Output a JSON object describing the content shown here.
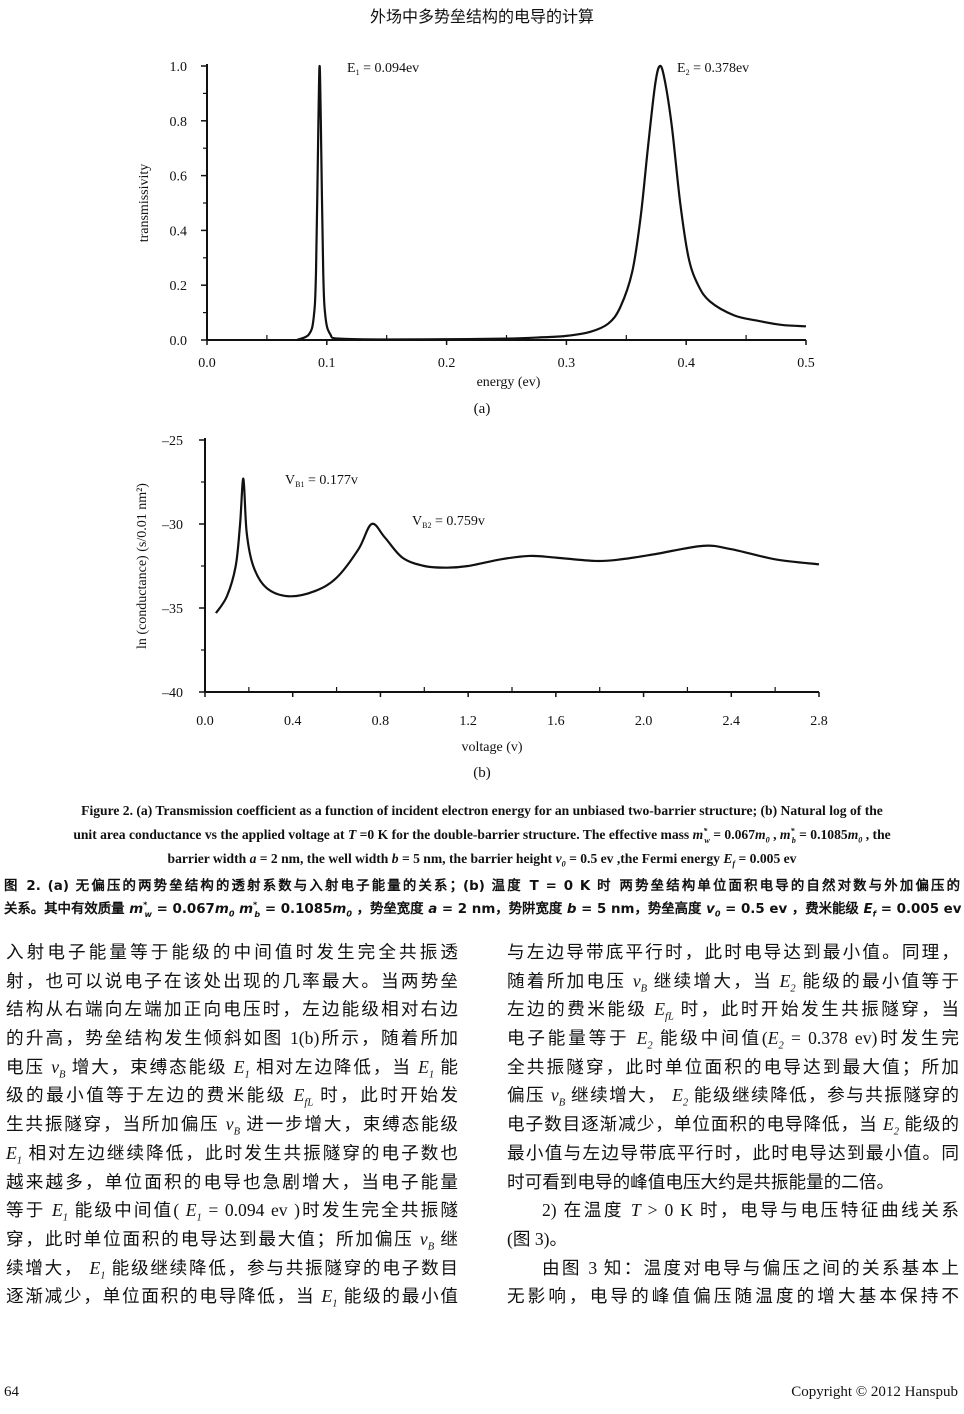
{
  "running_head": "外场中多势垒结构的电导的计算",
  "figure": {
    "panel_a_label": "(a)",
    "panel_b_label": "(b)"
  },
  "chart_data": [
    {
      "type": "line",
      "xlabel": "energy (ev)",
      "ylabel": "transmissivity",
      "xlim": [
        0,
        0.5
      ],
      "ylim": [
        0,
        1.0
      ],
      "x_ticks": [
        "0.0",
        "0.1",
        "0.2",
        "0.3",
        "0.4",
        "0.5"
      ],
      "y_ticks": [
        "0.0",
        "0.2",
        "0.4",
        "0.6",
        "0.8",
        "1.0"
      ],
      "grid": false,
      "annotations": [
        {
          "main": "E",
          "sub": "1",
          "rest": " = 0.094ev",
          "at": [
            0.094,
            1.0
          ]
        },
        {
          "main": "E",
          "sub": "2",
          "rest": " = 0.378ev",
          "at": [
            0.378,
            1.0
          ]
        }
      ],
      "x": [
        0.075,
        0.085,
        0.089,
        0.091,
        0.093,
        0.094,
        0.095,
        0.097,
        0.099,
        0.103,
        0.11,
        0.15,
        0.2,
        0.25,
        0.28,
        0.3,
        0.32,
        0.335,
        0.345,
        0.355,
        0.362,
        0.368,
        0.374,
        0.378,
        0.382,
        0.388,
        0.395,
        0.402,
        0.41,
        0.42,
        0.44,
        0.46,
        0.48,
        0.5
      ],
      "y": [
        0.0,
        0.02,
        0.08,
        0.25,
        0.8,
        1.0,
        0.8,
        0.25,
        0.08,
        0.02,
        0.005,
        0.002,
        0.003,
        0.005,
        0.01,
        0.015,
        0.03,
        0.06,
        0.12,
        0.25,
        0.45,
        0.7,
        0.93,
        1.0,
        0.95,
        0.78,
        0.5,
        0.3,
        0.2,
        0.14,
        0.09,
        0.07,
        0.055,
        0.05
      ]
    },
    {
      "type": "line",
      "xlabel": "voltage (v)",
      "ylabel": "ln (conductance) (s/0.01 nm²)",
      "xlim": [
        0,
        2.8
      ],
      "ylim": [
        -40,
        -25
      ],
      "x_ticks": [
        "0.0",
        "0.4",
        "0.8",
        "1.2",
        "1.6",
        "2.0",
        "2.4",
        "2.8"
      ],
      "y_ticks": [
        "–40",
        "–35",
        "–30",
        "–25"
      ],
      "grid": false,
      "annotations": [
        {
          "main": "V",
          "sub": "B1",
          "rest": " = 0.177v",
          "at": [
            0.177,
            -27.3
          ]
        },
        {
          "main": "V",
          "sub": "B2",
          "rest": " = 0.759v",
          "at": [
            0.759,
            -30.0
          ]
        }
      ],
      "x": [
        0.05,
        0.1,
        0.14,
        0.16,
        0.175,
        0.19,
        0.22,
        0.28,
        0.38,
        0.5,
        0.6,
        0.7,
        0.76,
        0.82,
        0.9,
        1.0,
        1.1,
        1.2,
        1.35,
        1.48,
        1.6,
        1.78,
        1.9,
        2.05,
        2.27,
        2.4,
        2.6,
        2.8
      ],
      "y": [
        -35.3,
        -34.3,
        -32.5,
        -30.0,
        -27.3,
        -30.5,
        -32.5,
        -33.8,
        -34.3,
        -34.0,
        -33.2,
        -31.5,
        -30.0,
        -30.8,
        -32.0,
        -32.5,
        -32.6,
        -32.5,
        -32.1,
        -31.9,
        -32.0,
        -32.2,
        -32.1,
        -31.8,
        -31.3,
        -31.5,
        -32.1,
        -32.4
      ]
    }
  ],
  "caption": {
    "en": [
      [
        {
          "t": "Figure 2. (a) Transmission coefficient as a function of incident electron energy for an unbiased two-barrier structure; (b) Natural log of the"
        }
      ],
      [
        {
          "t": "unit area conductance vs the applied voltage at "
        },
        {
          "m": "T"
        },
        {
          "t": " =0 K for the double-barrier structure. The effective mass "
        },
        {
          "m": "m",
          "sup": "*",
          "s": "w"
        },
        {
          "t": " = 0.067"
        },
        {
          "m": "m",
          "s": "0"
        },
        {
          "t": " , "
        },
        {
          "m": "m",
          "sup": "*",
          "s": "b"
        },
        {
          "t": " = 0.1085"
        },
        {
          "m": "m",
          "s": "0"
        },
        {
          "t": " , the"
        }
      ],
      [
        {
          "t": "barrier width "
        },
        {
          "m": "a"
        },
        {
          "t": " = 2 nm, the well width "
        },
        {
          "m": "b"
        },
        {
          "t": " = 5 nm, the barrier height  "
        },
        {
          "m": "v",
          "s": "0"
        },
        {
          "t": " = 0.5 ev ,the Fermi energy  "
        },
        {
          "m": "E",
          "s": "f"
        },
        {
          "t": " = 0.005 ev"
        }
      ]
    ],
    "zh": [
      [
        {
          "t": "图 2. (a)  无偏压的两势垒结构的透射系数与入射电子能量的关系；(b)  温度 T = 0 K 时  两势垒结构单位面积电导的自然对数与外加偏压的"
        }
      ],
      [
        {
          "t": "关系。其中有效质量 "
        },
        {
          "m": "m",
          "sup": "*",
          "s": "w"
        },
        {
          "t": " = 0.067"
        },
        {
          "m": "m",
          "s": "0"
        },
        {
          "t": "   "
        },
        {
          "m": "m",
          "sup": "*",
          "s": "b"
        },
        {
          "t": " = 0.1085"
        },
        {
          "m": "m",
          "s": "0"
        },
        {
          "t": " ，势垒宽度 "
        },
        {
          "m": "a"
        },
        {
          "t": " = 2 nm，势阱宽度 "
        },
        {
          "m": "b"
        },
        {
          "t": " = 5 nm，势垒高度 "
        },
        {
          "m": "v",
          "s": "0"
        },
        {
          "t": " = 0.5 ev ，费米能级 "
        },
        {
          "m": "E",
          "s": "f"
        },
        {
          "t": " = 0.005 ev"
        }
      ]
    ]
  },
  "body": {
    "left": [
      [
        {
          "t": "入射电子能量等于能级的中间值时发生完全共振透"
        }
      ],
      [
        {
          "t": "射，也可以说电子在该处出现的几率最大。当两势垒"
        }
      ],
      [
        {
          "t": "结构从右端向左端加正向电压时，左边能级相对右边"
        }
      ],
      [
        {
          "t": "的升高，势垒结构发生倾斜如图 1(b)所示，随着所加"
        }
      ],
      [
        {
          "t": "电压 "
        },
        {
          "m": "v",
          "s": "B"
        },
        {
          "t": " 增大，束缚态能级 "
        },
        {
          "m": "E",
          "s": "1"
        },
        {
          "t": " 相对左边降低，当 "
        },
        {
          "m": "E",
          "s": "1"
        },
        {
          "t": " 能"
        }
      ],
      [
        {
          "t": "级的最小值等于左边的费米能级 "
        },
        {
          "m": "E",
          "s": "fL"
        },
        {
          "t": " 时，此时开始发"
        }
      ],
      [
        {
          "t": "生共振隧穿，当所加偏压 "
        },
        {
          "m": "v",
          "s": "B"
        },
        {
          "t": " 进一步增大，束缚态能级"
        }
      ],
      [
        {
          "m": "E",
          "s": "1"
        },
        {
          "t": " 相对左边继续降低，此时发生共振隧穿的电子数也"
        }
      ],
      [
        {
          "t": "越来越多，单位面积的电导也急剧增大，当电子能量"
        }
      ],
      [
        {
          "t": "等于 "
        },
        {
          "m": "E",
          "s": "1"
        },
        {
          "t": " 能级中间值( "
        },
        {
          "m": "E",
          "s": "1"
        },
        {
          "t": " = 0.094 ev )时发生完全共振隧"
        }
      ],
      [
        {
          "t": "穿，此时单位面积的电导达到最大值；所加偏压 "
        },
        {
          "m": "v",
          "s": "B"
        },
        {
          "t": " 继"
        }
      ],
      [
        {
          "t": "续增大， "
        },
        {
          "m": "E",
          "s": "1"
        },
        {
          "t": " 能级继续降低，参与共振隧穿的电子数目"
        }
      ],
      [
        {
          "t": "逐渐减少，单位面积的电导降低，当 "
        },
        {
          "m": "E",
          "s": "1"
        },
        {
          "t": " 能级的最小值"
        }
      ]
    ],
    "right": [
      [
        {
          "t": "与左边导带底平行时，此时电导达到最小值。同理，"
        }
      ],
      [
        {
          "t": "随着所加电压 "
        },
        {
          "m": "v",
          "s": "B"
        },
        {
          "t": " 继续增大，当 "
        },
        {
          "m": "E",
          "s": "2"
        },
        {
          "t": " 能级的最小值等于"
        }
      ],
      [
        {
          "t": "左边的费米能级 "
        },
        {
          "m": "E",
          "s": "fL"
        },
        {
          "t": " 时，此时开始发生共振隧穿，当"
        }
      ],
      [
        {
          "t": "电子能量等于 "
        },
        {
          "m": "E",
          "s": "2"
        },
        {
          "t": " 能级中间值("
        },
        {
          "m": "E",
          "s": "2"
        },
        {
          "t": " = 0.378 ev)时发生完"
        }
      ],
      [
        {
          "t": "全共振隧穿，此时单位面积的电导达到最大值；所加"
        }
      ],
      [
        {
          "t": "偏压 "
        },
        {
          "m": "v",
          "s": "B"
        },
        {
          "t": " 继续增大， "
        },
        {
          "m": "E",
          "s": "2"
        },
        {
          "t": " 能级继续降低，参与共振隧穿的"
        }
      ],
      [
        {
          "t": "电子数目逐渐减少，单位面积的电导降低，当 "
        },
        {
          "m": "E",
          "s": "2"
        },
        {
          "t": " 能级的"
        }
      ],
      [
        {
          "t": "最小值与左边导带底平行时，此时电导达到最小值。同"
        }
      ],
      [
        {
          "t": "时可看到电导的峰值电压大约是共振能量的二倍。"
        }
      ],
      [
        {
          "t": "2)  在温度 "
        },
        {
          "m": "T"
        },
        {
          "t": " > 0 K 时，电导与电压特征曲线关系"
        }
      ],
      [
        {
          "t": "(图 3)。"
        }
      ],
      [
        {
          "t": "由图 3 知：温度对电导与偏压之间的关系基本上"
        }
      ],
      [
        {
          "t": "无影响，电导的峰值偏压随温度的增大基本保持不"
        }
      ]
    ],
    "right_indent_lines": [
      9,
      11
    ],
    "right_last_lines": [
      8,
      10
    ]
  },
  "footer": {
    "page_number": "64",
    "copyright": "Copyright © 2012 Hanspub"
  }
}
